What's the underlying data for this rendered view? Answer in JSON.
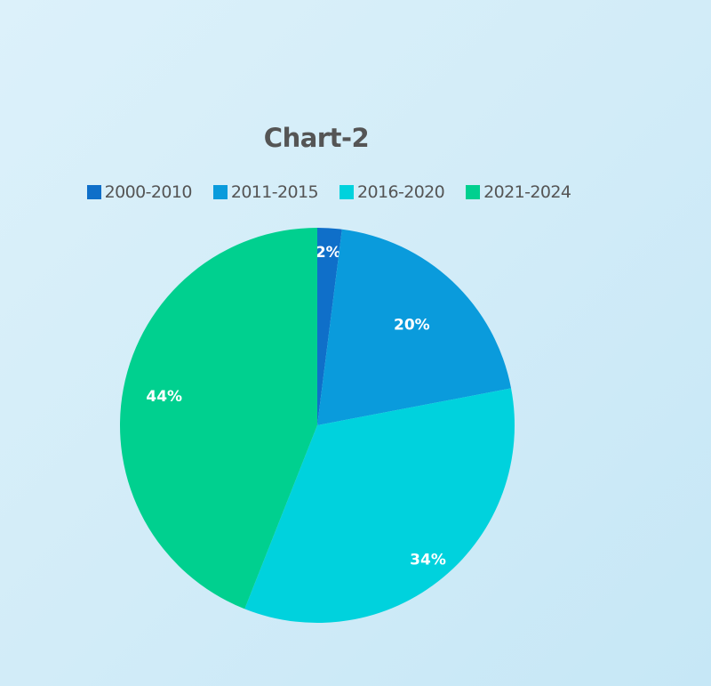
{
  "chart_data": {
    "type": "pie",
    "title": "Chart-2",
    "categories": [
      "2000-2010",
      "2011-2015",
      "2016-2020",
      "2021-2024"
    ],
    "values": [
      2,
      20,
      34,
      44
    ],
    "labels": [
      "2%",
      "20%",
      "34%",
      "44%"
    ],
    "colors": [
      "#0f6fc9",
      "#0a9bdc",
      "#00d2dd",
      "#00d08f"
    ],
    "legend_position": "top"
  }
}
